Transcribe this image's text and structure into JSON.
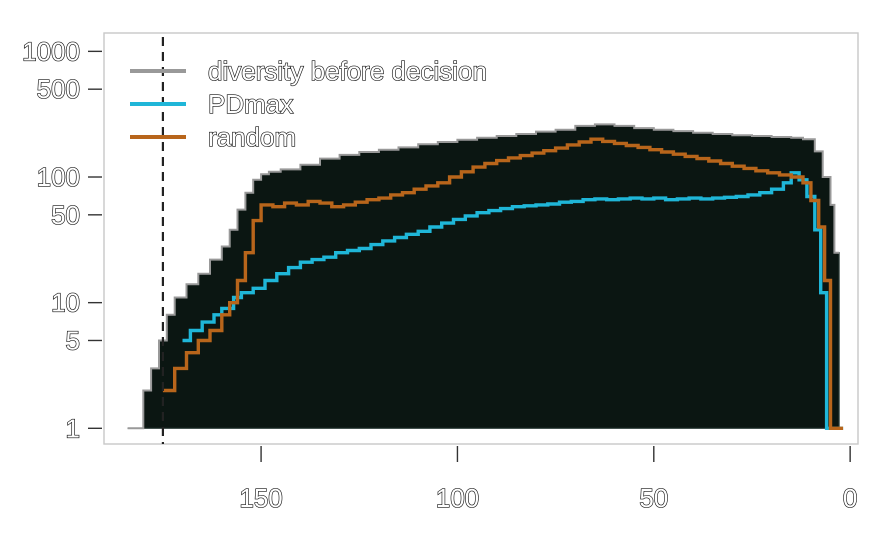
{
  "chart_data": {
    "type": "line",
    "title": "",
    "xlabel": "",
    "ylabel": "",
    "x_reversed": true,
    "y_scale": "log",
    "xlim": [
      190,
      -2
    ],
    "ylim": [
      0.75,
      1400
    ],
    "x_ticks": [
      {
        "value": 150,
        "label": "150"
      },
      {
        "value": 100,
        "label": "100"
      },
      {
        "value": 50,
        "label": "50"
      },
      {
        "value": 0,
        "label": "0"
      }
    ],
    "y_ticks": [
      {
        "value": 1,
        "label": "1"
      },
      {
        "value": 5,
        "label": "5"
      },
      {
        "value": 10,
        "label": "10"
      },
      {
        "value": 50,
        "label": "50"
      },
      {
        "value": 100,
        "label": "100"
      },
      {
        "value": 500,
        "label": "500"
      },
      {
        "value": 1000,
        "label": "1000"
      }
    ],
    "vline": {
      "x": 175,
      "style": "dashed"
    },
    "legend_position": "top-left",
    "series": [
      {
        "name": "diversity before decision",
        "color": "#999999",
        "fill": "#0b1612",
        "steps": [
          [
            184,
            1
          ],
          [
            180,
            2
          ],
          [
            178,
            3
          ],
          [
            176,
            5
          ],
          [
            174,
            8
          ],
          [
            172,
            11
          ],
          [
            169,
            14
          ],
          [
            166,
            17
          ],
          [
            163,
            22
          ],
          [
            160,
            28
          ],
          [
            158,
            38
          ],
          [
            156,
            55
          ],
          [
            154,
            75
          ],
          [
            152,
            95
          ],
          [
            150,
            105
          ],
          [
            148,
            110
          ],
          [
            145,
            115
          ],
          [
            140,
            125
          ],
          [
            135,
            140
          ],
          [
            130,
            150
          ],
          [
            125,
            158
          ],
          [
            120,
            165
          ],
          [
            115,
            172
          ],
          [
            110,
            182
          ],
          [
            105,
            190
          ],
          [
            100,
            198
          ],
          [
            95,
            205
          ],
          [
            90,
            212
          ],
          [
            85,
            220
          ],
          [
            80,
            230
          ],
          [
            75,
            238
          ],
          [
            70,
            255
          ],
          [
            65,
            262
          ],
          [
            60,
            255
          ],
          [
            55,
            245
          ],
          [
            50,
            238
          ],
          [
            45,
            232
          ],
          [
            40,
            225
          ],
          [
            35,
            220
          ],
          [
            30,
            215
          ],
          [
            25,
            212
          ],
          [
            20,
            208
          ],
          [
            15,
            205
          ],
          [
            12,
            200
          ],
          [
            9,
            160
          ],
          [
            7,
            100
          ],
          [
            5,
            60
          ],
          [
            4,
            25
          ]
        ]
      },
      {
        "name": "PDmax",
        "color": "#1fb6d8",
        "steps": [
          [
            170,
            5
          ],
          [
            168,
            6
          ],
          [
            165,
            7
          ],
          [
            162,
            8
          ],
          [
            160,
            9
          ],
          [
            157,
            11
          ],
          [
            155,
            12
          ],
          [
            152,
            13
          ],
          [
            149,
            15
          ],
          [
            146,
            17
          ],
          [
            143,
            19
          ],
          [
            140,
            21
          ],
          [
            137,
            22
          ],
          [
            134,
            23
          ],
          [
            131,
            25
          ],
          [
            128,
            26
          ],
          [
            125,
            27
          ],
          [
            122,
            29
          ],
          [
            119,
            31
          ],
          [
            116,
            33
          ],
          [
            113,
            35
          ],
          [
            110,
            37
          ],
          [
            107,
            40
          ],
          [
            104,
            43
          ],
          [
            101,
            46
          ],
          [
            98,
            49
          ],
          [
            95,
            52
          ],
          [
            92,
            54
          ],
          [
            89,
            56
          ],
          [
            86,
            58
          ],
          [
            83,
            59
          ],
          [
            80,
            60
          ],
          [
            77,
            61
          ],
          [
            74,
            63
          ],
          [
            71,
            64
          ],
          [
            68,
            66
          ],
          [
            65,
            67
          ],
          [
            62,
            66
          ],
          [
            59,
            67
          ],
          [
            56,
            68
          ],
          [
            53,
            67
          ],
          [
            50,
            68
          ],
          [
            47,
            66
          ],
          [
            44,
            67
          ],
          [
            41,
            68
          ],
          [
            38,
            67
          ],
          [
            35,
            68
          ],
          [
            32,
            69
          ],
          [
            29,
            70
          ],
          [
            26,
            72
          ],
          [
            23,
            75
          ],
          [
            20,
            80
          ],
          [
            17,
            90
          ],
          [
            15,
            108
          ],
          [
            13,
            95
          ],
          [
            11,
            70
          ],
          [
            9,
            38
          ],
          [
            7.5,
            12
          ],
          [
            6,
            1
          ],
          [
            3,
            1
          ]
        ]
      },
      {
        "name": "random",
        "color": "#b8651b",
        "steps": [
          [
            175,
            2
          ],
          [
            172,
            3
          ],
          [
            169,
            4
          ],
          [
            166,
            5
          ],
          [
            163,
            6
          ],
          [
            160,
            8
          ],
          [
            158,
            10
          ],
          [
            156,
            15
          ],
          [
            154,
            25
          ],
          [
            152,
            45
          ],
          [
            150,
            60
          ],
          [
            147,
            58
          ],
          [
            144,
            62
          ],
          [
            141,
            60
          ],
          [
            138,
            64
          ],
          [
            135,
            62
          ],
          [
            132,
            58
          ],
          [
            129,
            60
          ],
          [
            126,
            63
          ],
          [
            123,
            66
          ],
          [
            120,
            68
          ],
          [
            117,
            72
          ],
          [
            114,
            75
          ],
          [
            111,
            80
          ],
          [
            108,
            85
          ],
          [
            105,
            90
          ],
          [
            102,
            100
          ],
          [
            99,
            110
          ],
          [
            96,
            120
          ],
          [
            93,
            128
          ],
          [
            90,
            135
          ],
          [
            87,
            142
          ],
          [
            84,
            148
          ],
          [
            81,
            155
          ],
          [
            78,
            162
          ],
          [
            75,
            170
          ],
          [
            72,
            180
          ],
          [
            69,
            190
          ],
          [
            66,
            200
          ],
          [
            63,
            192
          ],
          [
            60,
            185
          ],
          [
            57,
            178
          ],
          [
            54,
            172
          ],
          [
            51,
            165
          ],
          [
            48,
            158
          ],
          [
            45,
            152
          ],
          [
            42,
            146
          ],
          [
            39,
            140
          ],
          [
            36,
            134
          ],
          [
            33,
            128
          ],
          [
            30,
            122
          ],
          [
            27,
            117
          ],
          [
            24,
            112
          ],
          [
            21,
            108
          ],
          [
            18,
            104
          ],
          [
            15,
            100
          ],
          [
            12,
            90
          ],
          [
            10,
            65
          ],
          [
            8,
            40
          ],
          [
            6.5,
            15
          ],
          [
            5,
            1
          ],
          [
            3,
            1
          ]
        ]
      }
    ]
  }
}
